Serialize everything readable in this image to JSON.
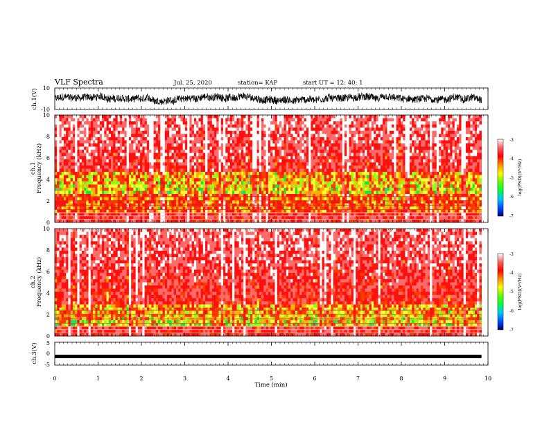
{
  "header": {
    "title": "VLF Spectra",
    "date": "Jul. 25, 2020",
    "station": "station= KAP",
    "start": "start UT =  12: 40: 1"
  },
  "chart_data": [
    {
      "type": "line",
      "name": "ch1-voltage",
      "ylabel": "ch.1(V)",
      "ylim": [
        -10,
        10
      ],
      "yticks": [
        "10",
        "-10"
      ],
      "xlim": [
        0,
        10
      ]
    },
    {
      "type": "heatmap",
      "name": "ch1-spectrogram",
      "ylabel": "ch.1\nFrequency (kHz)",
      "ylabel_line1": "ch.1",
      "ylabel_line2": "Frequency (kHz)",
      "ylim": [
        0,
        10
      ],
      "yticks": [
        "0",
        "2",
        "4",
        "6",
        "8",
        "10"
      ],
      "xlim": [
        0,
        9.85
      ],
      "colorbar": {
        "label": "log(PSD)(V²/Hz)",
        "range": [
          -7,
          -3
        ],
        "ticks": [
          "-3",
          "-4",
          "-5",
          "-6",
          "-7"
        ],
        "colors": [
          "#000080",
          "#0050ff",
          "#00c8ff",
          "#00ff40",
          "#60ff00",
          "#ffff00",
          "#ff9000",
          "#ff0000",
          "#ff6060",
          "#ffffff"
        ]
      }
    },
    {
      "type": "heatmap",
      "name": "ch2-spectrogram",
      "ylabel": "ch.2\nFrequency (kHz)",
      "ylabel_line1": "ch.2",
      "ylabel_line2": "Frequency (kHz)",
      "ylim": [
        0,
        10
      ],
      "yticks": [
        "0",
        "2",
        "4",
        "6",
        "8",
        "10"
      ],
      "xlim": [
        0,
        9.85
      ],
      "colorbar": {
        "label": "log(PSD)(V²/Hz)",
        "range": [
          -7,
          -3
        ],
        "ticks": [
          "-3",
          "-4",
          "-5",
          "-6",
          "-7"
        ],
        "colors": [
          "#000080",
          "#0050ff",
          "#00c8ff",
          "#00ff40",
          "#60ff00",
          "#ffff00",
          "#ff9000",
          "#ff0000",
          "#ff6060",
          "#ffffff"
        ]
      }
    },
    {
      "type": "line",
      "name": "ch3-voltage",
      "ylabel": "ch.3(V)",
      "ylim": [
        -5,
        5
      ],
      "yticks": [
        "5",
        "0",
        "-5"
      ],
      "xlim": [
        0,
        10
      ],
      "approx_level": -1.2
    }
  ],
  "xaxis": {
    "label": "Time (min)",
    "ticks": [
      "0",
      "1",
      "2",
      "3",
      "4",
      "5",
      "6",
      "7",
      "8",
      "9",
      "10"
    ],
    "range": [
      0,
      10
    ]
  }
}
